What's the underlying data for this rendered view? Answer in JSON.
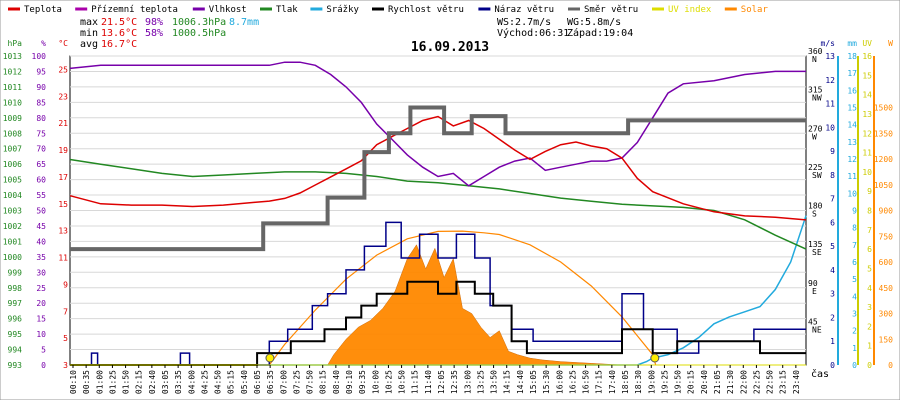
{
  "chart_data": {
    "type": "line",
    "title": "16.09.2013",
    "xlabel": "čas",
    "legend": [
      {
        "label": "Teplota",
        "color": "#dd0000"
      },
      {
        "label": "Přízemní teplota",
        "color": "#aa00aa"
      },
      {
        "label": "Vlhkost",
        "color": "#7700aa"
      },
      {
        "label": "Tlak",
        "color": "#228822"
      },
      {
        "label": "Srážky",
        "color": "#22aadd"
      },
      {
        "label": "Rychlost větru",
        "color": "#000000"
      },
      {
        "label": "Náraz větru",
        "color": "#000088"
      },
      {
        "label": "Směr větru",
        "color": "#666666"
      },
      {
        "label": "UV index",
        "color": "#dddd00"
      },
      {
        "label": "Solar",
        "color": "#ff8800"
      }
    ],
    "stats": {
      "max_label": "max",
      "max_temp": "21.5°C",
      "max_hum": "98%",
      "max_press": "1006.3hPa",
      "max_rain": "8.7mm",
      "min_label": "min",
      "min_temp": "13.6°C",
      "min_hum": "58%",
      "min_press": "1000.5hPa",
      "avg_label": "avg",
      "avg_temp": "16.7°C",
      "ws": "WS:2.7m/s",
      "wg": "WG:5.8m/s",
      "sunrise": "Východ:06:31",
      "sunset": "Západ:19:04"
    },
    "x_ticks": [
      "00:10",
      "00:35",
      "01:00",
      "01:25",
      "01:50",
      "02:15",
      "02:40",
      "03:05",
      "03:35",
      "04:00",
      "04:25",
      "04:50",
      "05:15",
      "05:40",
      "06:05",
      "06:35",
      "07:00",
      "07:25",
      "07:50",
      "08:15",
      "08:40",
      "09:10",
      "09:35",
      "10:00",
      "10:25",
      "10:50",
      "11:15",
      "11:40",
      "12:05",
      "12:35",
      "13:00",
      "13:25",
      "13:50",
      "14:15",
      "14:40",
      "15:05",
      "15:30",
      "16:00",
      "16:25",
      "16:50",
      "17:15",
      "17:40",
      "18:05",
      "18:30",
      "19:00",
      "19:25",
      "19:50",
      "20:15",
      "20:40",
      "21:05",
      "21:30",
      "22:00",
      "22:25",
      "22:50",
      "23:15",
      "23:40"
    ],
    "axes": {
      "hpa": {
        "unit": "hPa",
        "ticks": [
          "993",
          "994",
          "995",
          "996",
          "997",
          "998",
          "999",
          "1000",
          "1001",
          "1002",
          "1003",
          "1004",
          "1005",
          "1006",
          "1007",
          "1008",
          "1009",
          "1010",
          "1011",
          "1012",
          "1013"
        ],
        "range": [
          993,
          1013
        ]
      },
      "pct": {
        "unit": "%",
        "ticks": [
          "0",
          "5",
          "10",
          "15",
          "20",
          "25",
          "30",
          "35",
          "40",
          "45",
          "50",
          "55",
          "60",
          "65",
          "70",
          "75",
          "80",
          "85",
          "90",
          "95",
          "100"
        ],
        "range": [
          0,
          100
        ]
      },
      "degc": {
        "unit": "°C",
        "ticks": [
          "3",
          "5",
          "7",
          "9",
          "11",
          "13",
          "15",
          "17",
          "19",
          "21",
          "23",
          "25"
        ],
        "range": [
          3,
          26
        ]
      },
      "dir": {
        "labels": [
          {
            "v": "45",
            "d": "NE",
            "deg": 45
          },
          {
            "v": "90",
            "d": "E",
            "deg": 90
          },
          {
            "v": "135",
            "d": "SE",
            "deg": 135
          },
          {
            "v": "180",
            "d": "S",
            "deg": 180
          },
          {
            "v": "225",
            "d": "SW",
            "deg": 225
          },
          {
            "v": "270",
            "d": "W",
            "deg": 270
          },
          {
            "v": "315",
            "d": "NW",
            "deg": 315
          },
          {
            "v": "360",
            "d": "N",
            "deg": 360
          }
        ],
        "range": [
          0,
          360
        ]
      },
      "ms": {
        "unit": "m/s",
        "ticks": [
          "0",
          "1",
          "2",
          "3",
          "4",
          "5",
          "6",
          "7",
          "8",
          "9",
          "10",
          "11",
          "12",
          "13"
        ],
        "range": [
          0,
          13
        ]
      },
      "mm": {
        "unit": "mm",
        "ticks": [
          "0",
          "1",
          "2",
          "3",
          "4",
          "5",
          "6",
          "7",
          "8",
          "9",
          "10",
          "11",
          "12",
          "13",
          "14",
          "15",
          "16",
          "17",
          "18"
        ],
        "range": [
          0,
          18
        ]
      },
      "uv": {
        "unit": "UV",
        "ticks": [
          "0",
          "1",
          "2",
          "3",
          "4",
          "5",
          "6",
          "7",
          "8",
          "9",
          "10",
          "11",
          "12",
          "13",
          "14",
          "15",
          "16"
        ],
        "range": [
          0,
          16
        ]
      },
      "w": {
        "unit": "W",
        "ticks": [
          "0",
          "150",
          "300",
          "450",
          "600",
          "750",
          "900",
          "1050",
          "1200",
          "1350",
          "1500"
        ],
        "range": [
          0,
          1800
        ]
      }
    },
    "series": {
      "temperature": {
        "unit": "°C",
        "x": [
          0,
          1,
          2,
          3,
          4,
          5,
          5.5,
          6,
          6.5,
          7,
          7.5,
          8,
          8.5,
          9,
          9.5,
          10,
          10.5,
          11,
          11.5,
          12,
          12.5,
          13,
          13.5,
          14,
          14.5,
          15,
          15.5,
          16,
          16.5,
          17,
          17.5,
          18,
          18.5,
          19,
          20,
          21,
          22,
          23,
          24
        ],
        "y": [
          15.6,
          15.0,
          14.9,
          14.9,
          14.8,
          14.9,
          15.0,
          15.1,
          15.2,
          15.4,
          15.8,
          16.4,
          17.0,
          17.6,
          18.2,
          19.4,
          20.0,
          20.6,
          21.2,
          21.5,
          20.8,
          21.2,
          20.6,
          19.8,
          19.0,
          18.3,
          18.9,
          19.4,
          19.6,
          19.3,
          19.1,
          18.4,
          16.9,
          15.9,
          15.0,
          14.4,
          14.1,
          14.0,
          13.8
        ]
      },
      "humidity": {
        "unit": "%",
        "x": [
          0,
          1,
          2,
          3,
          4,
          5,
          6,
          6.5,
          7,
          7.5,
          8,
          8.5,
          9,
          9.5,
          10,
          10.5,
          11,
          11.5,
          12,
          12.5,
          13,
          13.5,
          14,
          14.5,
          15,
          15.5,
          16,
          16.5,
          17,
          17.5,
          18,
          18.5,
          19,
          19.5,
          20,
          21,
          22,
          23,
          24
        ],
        "y": [
          96,
          97,
          97,
          97,
          97,
          97,
          97,
          97,
          98,
          98,
          97,
          94,
          90,
          85,
          78,
          73,
          68,
          64,
          61,
          62,
          58,
          61,
          64,
          66,
          67,
          63,
          64,
          65,
          66,
          66,
          67,
          72,
          80,
          88,
          91,
          92,
          94,
          95,
          95
        ]
      },
      "pressure": {
        "unit": "hPa",
        "x": [
          0,
          1,
          2,
          3,
          4,
          5,
          6,
          7,
          8,
          9,
          10,
          11,
          12,
          13,
          14,
          15,
          16,
          17,
          18,
          19,
          20,
          21,
          22,
          23,
          24
        ],
        "y": [
          1006.3,
          1006.0,
          1005.7,
          1005.4,
          1005.2,
          1005.3,
          1005.4,
          1005.5,
          1005.5,
          1005.4,
          1005.2,
          1004.9,
          1004.8,
          1004.6,
          1004.4,
          1004.1,
          1003.8,
          1003.6,
          1003.4,
          1003.3,
          1003.2,
          1003.0,
          1002.4,
          1001.4,
          1000.5
        ]
      },
      "rain": {
        "unit": "mm",
        "x": [
          0,
          18.5,
          18.8,
          19.0,
          19.5,
          20,
          20.5,
          21,
          21.5,
          22,
          22.5,
          23,
          23.5,
          24
        ],
        "y": [
          0,
          0,
          0.2,
          0.4,
          0.6,
          1.0,
          1.6,
          2.4,
          2.8,
          3.1,
          3.4,
          4.4,
          6.0,
          8.7
        ]
      },
      "wind_speed": {
        "unit": "m/s",
        "x": [
          0,
          6.1,
          6.1,
          7.2,
          7.2,
          8.3,
          8.3,
          9.0,
          9.0,
          9.5,
          9.5,
          10.0,
          10.0,
          11.0,
          11.0,
          12.0,
          12.0,
          12.6,
          12.6,
          13.2,
          13.2,
          13.8,
          13.8,
          14.4,
          14.4,
          14.9,
          14.9,
          18.0,
          18.0,
          19.0,
          19.0,
          19.8,
          19.8,
          22.5,
          22.5,
          24
        ],
        "y": [
          0,
          0,
          0.5,
          0.5,
          1,
          1,
          1.5,
          1.5,
          2,
          2,
          2.5,
          2.5,
          3,
          3,
          3.5,
          3.5,
          3,
          3,
          3.5,
          3.5,
          3,
          3,
          2.5,
          2.5,
          1,
          1,
          0.5,
          0.5,
          1.5,
          1.5,
          0.5,
          0.5,
          1,
          1,
          0.5,
          0.5
        ]
      },
      "wind_gust": {
        "unit": "m/s",
        "x": [
          0,
          0.7,
          0.7,
          0.9,
          0.9,
          3.6,
          3.6,
          3.9,
          3.9,
          6.5,
          6.5,
          7.1,
          7.1,
          7.9,
          7.9,
          8.4,
          8.4,
          9.0,
          9.0,
          9.6,
          9.6,
          10.3,
          10.3,
          10.8,
          10.8,
          11.4,
          11.4,
          12.0,
          12.0,
          12.6,
          12.6,
          13.2,
          13.2,
          13.7,
          13.7,
          14.4,
          14.4,
          15.1,
          15.1,
          18.0,
          18.0,
          18.7,
          18.7,
          19.8,
          19.8,
          20.5,
          20.5,
          22.3,
          22.3,
          24
        ],
        "y": [
          0,
          0,
          0.5,
          0.5,
          0,
          0,
          0.5,
          0.5,
          0,
          0,
          1,
          1,
          1.5,
          1.5,
          2.5,
          2.5,
          3,
          3,
          4,
          4,
          5,
          5,
          6,
          6,
          4.5,
          4.5,
          5.5,
          5.5,
          4.5,
          4.5,
          5.5,
          5.5,
          4.5,
          4.5,
          2.5,
          2.5,
          1.5,
          1.5,
          1,
          1,
          3,
          3,
          1.5,
          1.5,
          0.5,
          0.5,
          1,
          1,
          1.5,
          1.5
        ]
      },
      "wind_dir": {
        "unit": "°",
        "x": [
          0,
          6.3,
          6.3,
          8.4,
          8.4,
          9.6,
          9.6,
          10.4,
          10.4,
          11.1,
          11.1,
          12.2,
          12.2,
          13.1,
          13.1,
          14.2,
          14.2,
          18.2,
          18.2,
          24
        ],
        "y": [
          135,
          135,
          165,
          165,
          195,
          195,
          248,
          248,
          270,
          270,
          300,
          300,
          270,
          270,
          290,
          290,
          270,
          270,
          285,
          285
        ]
      },
      "solar": {
        "unit": "W/m²",
        "x": [
          0,
          8.4,
          8.6,
          9.0,
          9.4,
          9.8,
          10.2,
          10.6,
          11.0,
          11.3,
          11.6,
          11.9,
          12.2,
          12.5,
          12.8,
          13.1,
          13.4,
          13.7,
          14.0,
          14.3,
          14.6,
          15.0,
          15.4,
          16.0,
          17.0,
          18.0,
          24
        ],
        "y": [
          0,
          0,
          60,
          150,
          220,
          260,
          330,
          430,
          620,
          700,
          560,
          680,
          510,
          620,
          330,
          300,
          220,
          160,
          200,
          80,
          60,
          40,
          30,
          20,
          10,
          0,
          0
        ]
      },
      "solar_max": {
        "unit": "W/m²",
        "x": [
          6.5,
          7,
          8,
          9,
          10,
          11,
          12,
          12.8,
          13.5,
          14,
          15,
          16,
          17,
          18,
          19,
          19.1
        ],
        "y": [
          0,
          120,
          320,
          500,
          640,
          735,
          778,
          780,
          770,
          760,
          700,
          600,
          460,
          280,
          60,
          0
        ]
      },
      "uv": {
        "unit": "UV",
        "x": [
          0,
          24
        ],
        "y": [
          0,
          0
        ]
      },
      "markers": {
        "sunrise_h": 6.52,
        "sunset_h": 19.07
      }
    }
  }
}
